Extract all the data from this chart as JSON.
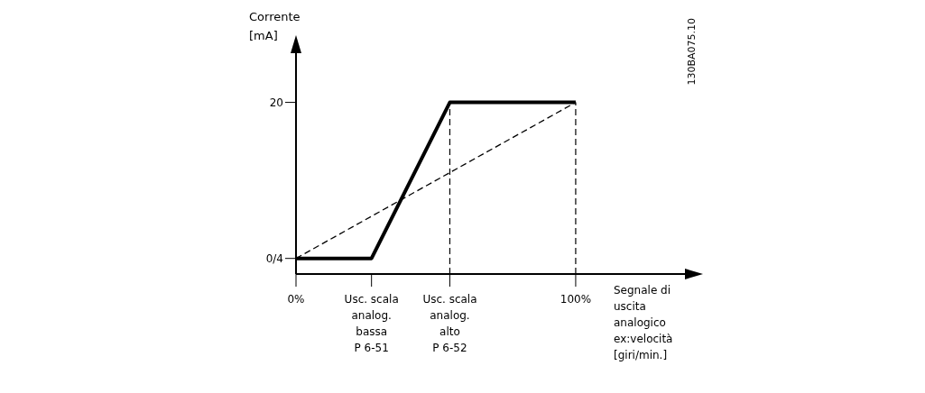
{
  "chart_data": {
    "type": "line",
    "xlabel": "Segnale di\nuscita\nanalogico\nex:velocità\n[giri/min.]",
    "ylabel": "Corrente\n[mA]",
    "annotations": [
      "130BA075.10"
    ],
    "xlim": [
      0,
      141
    ],
    "ylim": [
      -2,
      27
    ],
    "xticks": [
      {
        "value": 0,
        "label": "0%"
      },
      {
        "value": 27,
        "label": "Usc. scala\nanalog.\nbassa\nP 6-51"
      },
      {
        "value": 55,
        "label": "Usc. scala\nanalog.\nalto\nP 6-52"
      },
      {
        "value": 100,
        "label": "100%"
      }
    ],
    "yticks": [
      {
        "value": 0,
        "label": "0/4"
      },
      {
        "value": 20,
        "label": "20"
      }
    ],
    "series": [
      {
        "x": [
          0,
          27,
          55,
          100
        ],
        "values": [
          0,
          0,
          20,
          20
        ],
        "color": "#000000",
        "line_style": "solid"
      },
      {
        "x": [
          0,
          100
        ],
        "values": [
          0,
          20
        ],
        "color": "#000000",
        "line_style": "dashed"
      }
    ],
    "ref_lines": [
      {
        "axis": "x",
        "value": 55,
        "label": null,
        "color": "#000000",
        "line_style": "dashed"
      },
      {
        "axis": "x",
        "value": 100,
        "label": null,
        "color": "#000000",
        "line_style": "dashed"
      }
    ],
    "grid": false,
    "legend": false,
    "marker": "none"
  }
}
